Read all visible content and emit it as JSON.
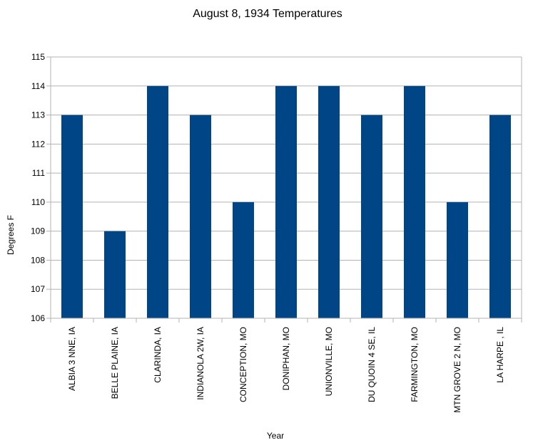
{
  "chart_data": {
    "type": "bar",
    "title": "August 8, 1934 Temperatures",
    "xlabel": "Year",
    "ylabel": "Degrees F",
    "categories": [
      "ALBIA 3 NNE, IA",
      "BELLE PLAINE, IA",
      "CLARINDA, IA",
      "INDIANOLA 2W, IA",
      "CONCEPTION, MO",
      "DONIPHAN, MO",
      "UNIONVILLE, MO",
      "DU QUOIN 4 SE, IL",
      "FARMINGTON, MO",
      "MTN GROVE 2 N, MO",
      "LA HARPE , IL"
    ],
    "values": [
      113,
      109,
      114,
      113,
      110,
      114,
      114,
      113,
      114,
      110,
      113
    ],
    "ylim": [
      106,
      115
    ],
    "yticks": [
      106,
      107,
      108,
      109,
      110,
      111,
      112,
      113,
      114,
      115
    ],
    "grid": true,
    "bar_color": "#004586",
    "grid_color": "#b3b3b3"
  }
}
